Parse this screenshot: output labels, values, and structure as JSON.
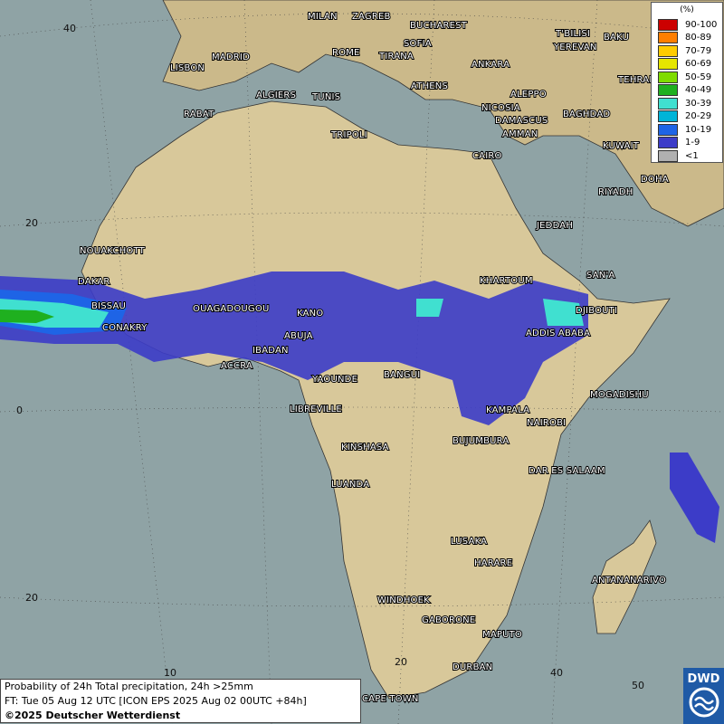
{
  "map": {
    "cities": [
      "MILAN",
      "ZAGREB",
      "BUCHAREST",
      "T'BILISI",
      "BAKU",
      "MADRID",
      "ROME",
      "SOFIA",
      "YEREVAN",
      "LISBON",
      "TIRANA",
      "ANKARA",
      "TEHRAN",
      "ALGIERS",
      "TUNIS",
      "ATHENS",
      "ALEPPO",
      "RABAT",
      "NICOSIA",
      "BAGHDAD",
      "DAMASCUS",
      "TRIPOLI",
      "AMMAN",
      "KUWAIT",
      "CAIRO",
      "DOHA",
      "RIYADH",
      "JEDDAH",
      "NOUAKCHOTT",
      "SAN'A",
      "DAKAR",
      "KHARTOUM",
      "BISSAU",
      "OUAGADOUGOU",
      "KANO",
      "DJIBOUTI",
      "CONAKRY",
      "ABUJA",
      "ADDIS ABABA",
      "IBADAN",
      "ACCRA",
      "YAOUNDE",
      "BANGUI",
      "MOGADISHU",
      "LIBREVILLE",
      "KAMPALA",
      "NAIROBI",
      "KINSHASA",
      "BUJUMBURA",
      "DAR ES SALAAM",
      "LUANDA",
      "LUSAKA",
      "HARARE",
      "ANTANANARIVO",
      "WINDHOEK",
      "GABORONE",
      "MAPUTO",
      "DURBAN",
      "CAPE TOWN"
    ],
    "grid_labels": [
      "40",
      "20",
      "0",
      "20",
      "10",
      "20",
      "40",
      "50"
    ]
  },
  "legend": {
    "unit": "(%)",
    "entries": [
      {
        "label": "90-100",
        "color": "#cc0000"
      },
      {
        "label": "80-89",
        "color": "#ff7f00"
      },
      {
        "label": "70-79",
        "color": "#ffcc00"
      },
      {
        "label": "60-69",
        "color": "#e6e600"
      },
      {
        "label": "50-59",
        "color": "#7fdc00"
      },
      {
        "label": "40-49",
        "color": "#1fb01f"
      },
      {
        "label": "30-39",
        "color": "#40e0d0"
      },
      {
        "label": "20-29",
        "color": "#00b4d8"
      },
      {
        "label": "10-19",
        "color": "#1e64e6"
      },
      {
        "label": "1-9",
        "color": "#3c3cc8"
      },
      {
        "label": "<1",
        "color": "#b0b0b0"
      }
    ]
  },
  "footer": {
    "lines": [
      "Probability of 24h Total precipitation, 24h >25mm",
      "FT: Tue 05 Aug 12 UTC [ICON EPS 2025 Aug 02 00UTC +84h]",
      "©2025 Deutscher Wetterdienst"
    ]
  },
  "logo": "DWD"
}
